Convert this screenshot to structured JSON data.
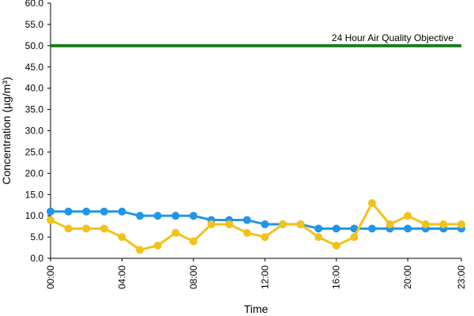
{
  "chart_data": {
    "type": "line",
    "xlabel": "Time",
    "ylabel": "Concentration (µg/m³)",
    "ylim": [
      0,
      60
    ],
    "yticks": [
      "0.0",
      "5.0",
      "10.0",
      "15.0",
      "20.0",
      "25.0",
      "30.0",
      "35.0",
      "40.0",
      "45.0",
      "50.0",
      "55.0",
      "60.0"
    ],
    "xlim": [
      0,
      23
    ],
    "xtick_hours": [
      0,
      4,
      8,
      12,
      16,
      20,
      23
    ],
    "xticks": [
      "00:00",
      "04:00",
      "08:00",
      "12:00",
      "16:00",
      "20:00",
      "23:00"
    ],
    "x": [
      0,
      1,
      2,
      3,
      4,
      5,
      6,
      7,
      8,
      9,
      10,
      11,
      12,
      13,
      14,
      15,
      16,
      17,
      18,
      19,
      20,
      21,
      22,
      23
    ],
    "grid": false,
    "legend": "none",
    "series": [
      {
        "color": "#2196e8",
        "values": [
          11,
          11,
          11,
          11,
          11,
          10,
          10,
          10,
          10,
          9,
          9,
          9,
          8,
          8,
          8,
          7,
          7,
          7,
          7,
          7,
          7,
          7,
          7,
          7
        ]
      },
      {
        "color": "#f2c21b",
        "values": [
          9,
          7,
          7,
          7,
          5,
          2,
          3,
          6,
          4,
          8,
          8,
          6,
          5,
          8,
          8,
          5,
          3,
          5,
          13,
          8,
          10,
          8,
          8,
          8
        ]
      }
    ],
    "reference_line": {
      "value": 50,
      "label": "24 Hour Air Quality Objective",
      "color": "#1e7a1e"
    }
  }
}
